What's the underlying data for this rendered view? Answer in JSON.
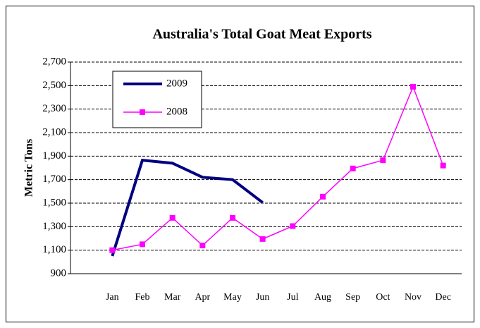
{
  "chart_data": {
    "type": "line",
    "title": "Australia's Total Goat Meat Exports",
    "y_label": "Metric Tons",
    "categories": [
      "Jan",
      "Feb",
      "Mar",
      "Apr",
      "May",
      "Jun",
      "Jul",
      "Aug",
      "Sep",
      "Oct",
      "Nov",
      "Dec"
    ],
    "series": [
      {
        "name": "2009",
        "color": "#000080",
        "values": [
          1050,
          1865,
          1840,
          1720,
          1700,
          1505,
          null,
          null,
          null,
          null,
          null,
          null
        ]
      },
      {
        "name": "2008",
        "color": "#ff00ff",
        "values": [
          1100,
          1150,
          1375,
          1140,
          1375,
          1195,
          1305,
          1555,
          1795,
          1865,
          2490,
          1820
        ]
      }
    ],
    "ylim": [
      900,
      2700
    ],
    "yticks": [
      900,
      {
        "value": 1100,
        "label": "1,100"
      },
      {
        "value": 1300,
        "label": "1,300"
      },
      {
        "value": 1500,
        "label": "1,500"
      },
      {
        "value": 1700,
        "label": "1,700"
      },
      {
        "value": 1900,
        "label": "1,900"
      },
      {
        "value": 2100,
        "label": "2,100"
      },
      {
        "value": 2300,
        "label": "2,300"
      },
      {
        "value": 2500,
        "label": "2,500"
      },
      {
        "value": 2700,
        "label": "2,700"
      }
    ],
    "grid": true,
    "legend": "upper left"
  }
}
